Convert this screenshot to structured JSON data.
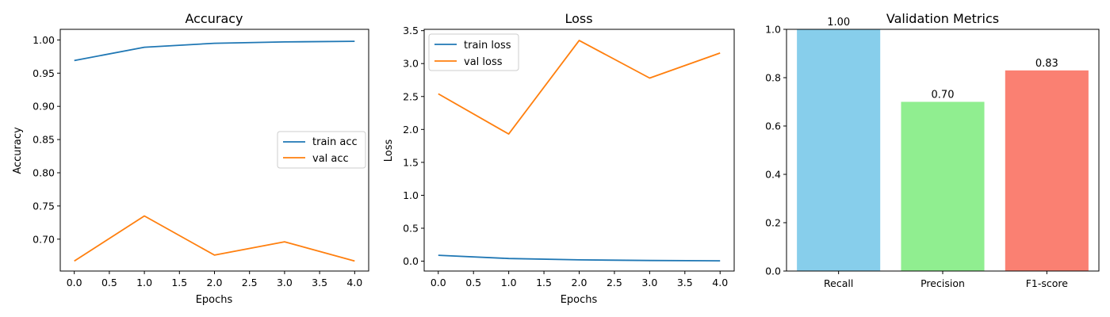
{
  "chart_data": [
    {
      "type": "line",
      "title": "Accuracy",
      "xlabel": "Epochs",
      "ylabel": "Accuracy",
      "x": [
        0,
        1,
        2,
        3,
        4
      ],
      "xlim": [
        -0.2,
        4.2
      ],
      "ylim": [
        0.652,
        1.016
      ],
      "xticks": [
        0,
        0.5,
        1,
        1.5,
        2,
        2.5,
        3,
        3.5,
        4
      ],
      "xtick_labels": [
        "0.0",
        "0.5",
        "1.0",
        "1.5",
        "2.0",
        "2.5",
        "3.0",
        "3.5",
        "4.0"
      ],
      "yticks": [
        0.7,
        0.75,
        0.8,
        0.85,
        0.9,
        0.95,
        1.0
      ],
      "ytick_labels": [
        "0.70",
        "0.75",
        "0.80",
        "0.85",
        "0.90",
        "0.95",
        "1.00"
      ],
      "legend_position": "center-right",
      "series": [
        {
          "name": "train acc",
          "color": "#1f77b4",
          "values": [
            0.969,
            0.989,
            0.995,
            0.997,
            0.998
          ]
        },
        {
          "name": "val acc",
          "color": "#ff7f0e",
          "values": [
            0.667,
            0.735,
            0.676,
            0.696,
            0.667
          ]
        }
      ]
    },
    {
      "type": "line",
      "title": "Loss",
      "xlabel": "Epochs",
      "ylabel": "Loss",
      "x": [
        0,
        1,
        2,
        3,
        4
      ],
      "xlim": [
        -0.2,
        4.2
      ],
      "ylim": [
        -0.15,
        3.52
      ],
      "xticks": [
        0,
        0.5,
        1,
        1.5,
        2,
        2.5,
        3,
        3.5,
        4
      ],
      "xtick_labels": [
        "0.0",
        "0.5",
        "1.0",
        "1.5",
        "2.0",
        "2.5",
        "3.0",
        "3.5",
        "4.0"
      ],
      "yticks": [
        0,
        0.5,
        1.0,
        1.5,
        2.0,
        2.5,
        3.0,
        3.5
      ],
      "ytick_labels": [
        "0.0",
        "0.5",
        "1.0",
        "1.5",
        "2.0",
        "2.5",
        "3.0",
        "3.5"
      ],
      "legend_position": "top-left",
      "series": [
        {
          "name": "train loss",
          "color": "#1f77b4",
          "values": [
            0.09,
            0.04,
            0.02,
            0.01,
            0.005
          ]
        },
        {
          "name": "val loss",
          "color": "#ff7f0e",
          "values": [
            2.54,
            1.93,
            3.35,
            2.78,
            3.16
          ]
        }
      ]
    },
    {
      "type": "bar",
      "title": "Validation Metrics",
      "categories": [
        "Recall",
        "Precision",
        "F1-score"
      ],
      "values": [
        1.0,
        0.7,
        0.83
      ],
      "data_labels": [
        "1.00",
        "0.70",
        "0.83"
      ],
      "colors": [
        "#87ceeb",
        "#90ee90",
        "#fa8072"
      ],
      "ylim": [
        0,
        1.0
      ],
      "yticks": [
        0,
        0.2,
        0.4,
        0.6,
        0.8,
        1.0
      ],
      "ytick_labels": [
        "0.0",
        "0.2",
        "0.4",
        "0.6",
        "0.8",
        "1.0"
      ]
    }
  ]
}
